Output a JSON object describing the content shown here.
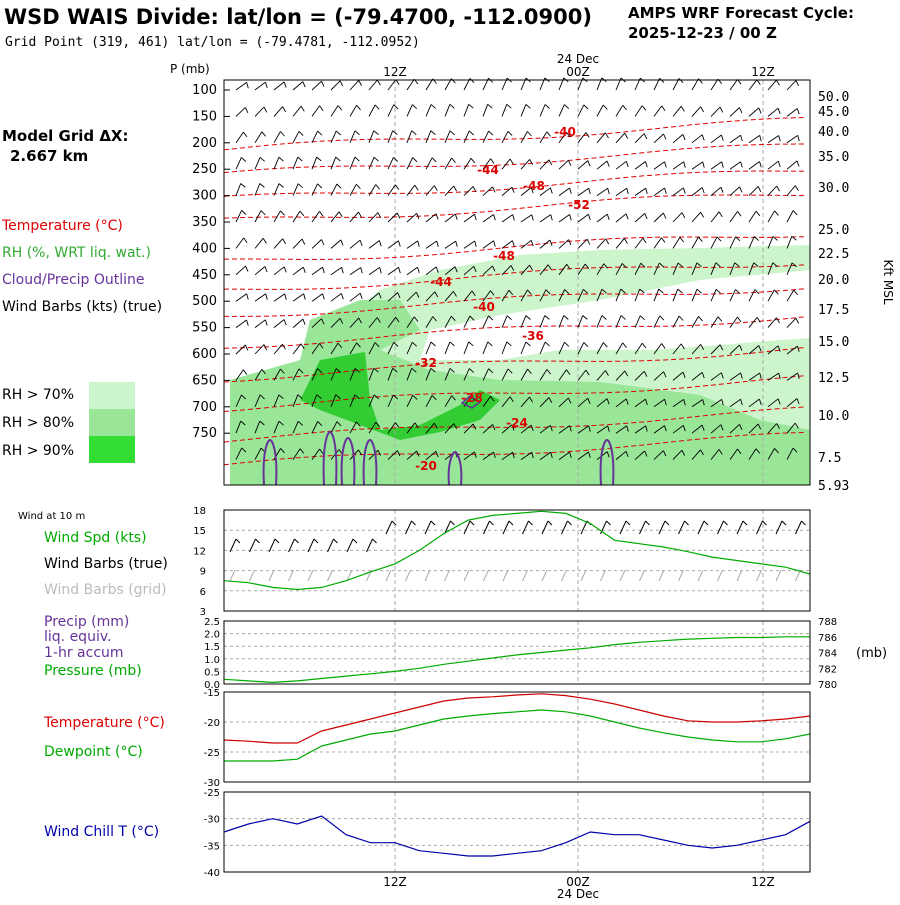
{
  "header": {
    "title": "WSD WAIS Divide:  lat/lon = (-79.4700, -112.0900)",
    "subtitle": "Grid Point (319, 461) lat/lon = (-79.4781, -112.0952)",
    "cycle_label": "AMPS WRF Forecast Cycle:",
    "cycle_value": "2025-12-23 / 00  Z"
  },
  "time_axis": {
    "date_label": "24 Dec",
    "ticks": [
      "12Z",
      "00Z",
      "12Z"
    ]
  },
  "legend": {
    "model_grid": "Model Grid ΔX:",
    "model_grid_value": "2.667 km",
    "temperature": "Temperature (°C)",
    "rh": "RH (%, WRT liq. wat.)",
    "cloud": "Cloud/Precip Outline",
    "wind": "Wind Barbs (kts) (true)",
    "rh70": "RH > 70%",
    "rh80": "RH > 80%",
    "rh90": "RH > 90%"
  },
  "colors": {
    "temperature": "#dd0000",
    "rh70": "#ccf5cc",
    "rh80": "#99e699",
    "rh90": "#33cc33",
    "cloud": "#663399",
    "wind_speed": "#00aa00",
    "pressure": "#00aa00",
    "precip": "#663399",
    "dewpoint": "#00aa00",
    "windchill": "#0000aa"
  },
  "chart_data": [
    {
      "type": "heatmap",
      "title": "WSD WAIS Divide:  lat/lon = (-79.4700, -112.0900)",
      "ylabel": "P (mb)",
      "y_ticks": [
        "100",
        "150",
        "200",
        "250",
        "300",
        "350",
        "400",
        "450",
        "500",
        "550",
        "600",
        "650",
        "700",
        "750"
      ],
      "right_axis_label": "Kft MSL",
      "right_ticks": [
        "50.0",
        "45.0",
        "40.0",
        "35.0",
        "30.0",
        "25.0",
        "22.5",
        "20.0",
        "17.5",
        "15.0",
        "12.5",
        "10.0",
        "7.5",
        "5.93"
      ],
      "temperature_labels": [
        "-40",
        "-44",
        "-48",
        "-52",
        "-48",
        "-44",
        "-40",
        "-36",
        "-32",
        "-28",
        "-24",
        "-20"
      ]
    },
    {
      "type": "line",
      "title": "Wind at 10 m",
      "series_labels": [
        "Wind Spd (kts)",
        "Wind Barbs (true)",
        "Wind Barbs (grid)"
      ],
      "y_ticks": [
        "18",
        "15",
        "12",
        "9",
        "6",
        "3"
      ],
      "ylim": [
        3,
        18
      ],
      "x_hours": [
        0,
        2,
        4,
        6,
        8,
        10,
        12,
        14,
        16,
        18,
        20,
        22,
        24,
        26,
        28,
        30,
        32,
        34,
        36,
        38,
        40,
        42,
        44,
        46,
        48
      ],
      "series": [
        {
          "name": "Wind Spd (kts)",
          "values": [
            7.5,
            7.2,
            6.5,
            6.2,
            6.5,
            7.5,
            8.8,
            10,
            12,
            14.5,
            16.5,
            17.2,
            17.5,
            17.8,
            17.5,
            16,
            13.5,
            13,
            12.5,
            11.8,
            11,
            10.5,
            10,
            9.5,
            8.5
          ]
        }
      ]
    },
    {
      "type": "line",
      "series_labels": [
        "Precip (mm)",
        "liq. equiv.",
        "1-hr accum",
        "Pressure (mb)"
      ],
      "left_ticks": [
        "2.5",
        "2.0",
        "1.5",
        "1.0",
        "0.5",
        "0.0"
      ],
      "right_ticks": [
        "788",
        "786",
        "784",
        "782",
        "780"
      ],
      "right_unit": "(mb)",
      "ylim": [
        780,
        788
      ],
      "x_hours": [
        0,
        2,
        4,
        6,
        8,
        10,
        12,
        14,
        16,
        18,
        20,
        22,
        24,
        26,
        28,
        30,
        32,
        34,
        36,
        38,
        40,
        42,
        44,
        46,
        48
      ],
      "series": [
        {
          "name": "Pressure (mb)",
          "values": [
            780.6,
            780.4,
            780.2,
            780.4,
            780.7,
            781.0,
            781.3,
            781.6,
            782.0,
            782.5,
            782.9,
            783.3,
            783.7,
            784.0,
            784.3,
            784.6,
            785.0,
            785.3,
            785.5,
            785.7,
            785.8,
            785.9,
            785.9,
            786.0,
            786.0
          ]
        }
      ]
    },
    {
      "type": "line",
      "series_labels": [
        "Temperature (°C)",
        "Dewpoint (°C)"
      ],
      "y_ticks": [
        "-15",
        "-20",
        "-25",
        "-30"
      ],
      "ylim": [
        -30,
        -15
      ],
      "x_hours": [
        0,
        2,
        4,
        6,
        8,
        10,
        12,
        14,
        16,
        18,
        20,
        22,
        24,
        26,
        28,
        30,
        32,
        34,
        36,
        38,
        40,
        42,
        44,
        46,
        48
      ],
      "series": [
        {
          "name": "Temperature (°C)",
          "values": [
            -23,
            -23.2,
            -23.5,
            -23.5,
            -21.5,
            -20.5,
            -19.5,
            -18.5,
            -17.5,
            -16.5,
            -16,
            -15.8,
            -15.5,
            -15.3,
            -15.6,
            -16.2,
            -17,
            -18,
            -19,
            -19.8,
            -20,
            -20,
            -19.8,
            -19.5,
            -19
          ]
        },
        {
          "name": "Dewpoint (°C)",
          "values": [
            -26.5,
            -26.5,
            -26.5,
            -26.2,
            -24,
            -23,
            -22,
            -21.5,
            -20.5,
            -19.5,
            -19,
            -18.6,
            -18.3,
            -18,
            -18.3,
            -19,
            -20,
            -21,
            -21.8,
            -22.5,
            -23,
            -23.3,
            -23.3,
            -22.8,
            -22
          ]
        }
      ]
    },
    {
      "type": "line",
      "series_labels": [
        "Wind Chill T (°C)"
      ],
      "y_ticks": [
        "-25",
        "-30",
        "-35",
        "-40"
      ],
      "ylim": [
        -40,
        -25
      ],
      "x_hours": [
        0,
        2,
        4,
        6,
        8,
        10,
        12,
        14,
        16,
        18,
        20,
        22,
        24,
        26,
        28,
        30,
        32,
        34,
        36,
        38,
        40,
        42,
        44,
        46,
        48
      ],
      "series": [
        {
          "name": "Wind Chill T (°C)",
          "values": [
            -32.5,
            -31,
            -30,
            -31,
            -29.5,
            -33,
            -34.5,
            -34.5,
            -36,
            -36.5,
            -37,
            -37,
            -36.5,
            -36,
            -34.5,
            -32.5,
            -33,
            -33,
            -34,
            -35,
            -35.5,
            -35,
            -34,
            -33,
            -30.5
          ]
        }
      ]
    }
  ]
}
